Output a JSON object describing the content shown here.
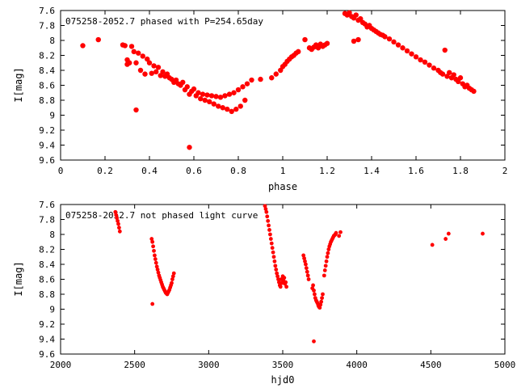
{
  "chart_data": [
    {
      "type": "scatter",
      "title": "075258-2052.7 phased with P=254.65day",
      "xlabel": "phase",
      "ylabel": "I[mag]",
      "xlim": [
        0,
        2
      ],
      "ylim": [
        9.6,
        7.6
      ],
      "y_inverted": true,
      "grid": false,
      "x_ticks": [
        0,
        0.2,
        0.4,
        0.6,
        0.8,
        1,
        1.2,
        1.4,
        1.6,
        1.8,
        2
      ],
      "y_ticks": [
        7.6,
        7.8,
        8,
        8.2,
        8.4,
        8.6,
        8.8,
        9,
        9.2,
        9.4,
        9.6
      ],
      "marker_color": "#ff0000",
      "series": [
        {
          "x": [
            0.1,
            0.17,
            0.28,
            0.29,
            0.3,
            0.3,
            0.31,
            0.32,
            0.33,
            0.34,
            0.35,
            0.36,
            0.37,
            0.38,
            0.39,
            0.4,
            0.41,
            0.42,
            0.43,
            0.44,
            0.45,
            0.46,
            0.47,
            0.48,
            0.49,
            0.5,
            0.51,
            0.52,
            0.53,
            0.54,
            0.55,
            0.56,
            0.57,
            0.58,
            0.59,
            0.6,
            0.61,
            0.62,
            0.63,
            0.64,
            0.65,
            0.66,
            0.67,
            0.68,
            0.69,
            0.7,
            0.71,
            0.72,
            0.73,
            0.74,
            0.75,
            0.76,
            0.77,
            0.78,
            0.79,
            0.8,
            0.81,
            0.82,
            0.83,
            0.84,
            0.86,
            0.9,
            0.34,
            0.58,
            0.95,
            0.97,
            0.99,
            1.0,
            1.01,
            1.02,
            1.03,
            1.04,
            1.05,
            1.06,
            1.07,
            1.1,
            1.12,
            1.13,
            1.14,
            1.15,
            1.16,
            1.17,
            1.18,
            1.19,
            1.2,
            1.28,
            1.29,
            1.3,
            1.31,
            1.32,
            1.33,
            1.34,
            1.35,
            1.36,
            1.37,
            1.38,
            1.39,
            1.4,
            1.41,
            1.42,
            1.43,
            1.44,
            1.45,
            1.46,
            1.48,
            1.5,
            1.52,
            1.54,
            1.56,
            1.58,
            1.6,
            1.62,
            1.64,
            1.66,
            1.68,
            1.7,
            1.71,
            1.72,
            1.73,
            1.74,
            1.75,
            1.76,
            1.77,
            1.78,
            1.79,
            1.8,
            1.81,
            1.82,
            1.83,
            1.84,
            1.85,
            1.86,
            1.32,
            1.34
          ],
          "y": [
            8.07,
            7.99,
            8.06,
            8.07,
            8.32,
            8.26,
            8.3,
            8.08,
            8.15,
            8.3,
            8.17,
            8.4,
            8.21,
            8.45,
            8.25,
            8.3,
            8.44,
            8.34,
            8.42,
            8.36,
            8.47,
            8.42,
            8.48,
            8.45,
            8.5,
            8.52,
            8.56,
            8.53,
            8.58,
            8.6,
            8.56,
            8.66,
            8.62,
            8.72,
            8.68,
            8.65,
            8.74,
            8.7,
            8.78,
            8.72,
            8.8,
            8.73,
            8.82,
            8.74,
            8.85,
            8.75,
            8.88,
            8.76,
            8.9,
            8.74,
            8.92,
            8.72,
            8.95,
            8.7,
            8.92,
            8.66,
            8.88,
            8.62,
            8.8,
            8.58,
            8.53,
            8.52,
            8.93,
            9.43,
            8.5,
            8.45,
            8.4,
            8.35,
            8.32,
            8.28,
            8.25,
            8.22,
            8.2,
            8.17,
            8.15,
            7.99,
            8.1,
            8.12,
            8.09,
            8.06,
            8.1,
            8.05,
            8.08,
            8.06,
            8.04,
            7.64,
            7.66,
            7.63,
            7.68,
            7.7,
            7.66,
            7.73,
            7.71,
            7.76,
            7.78,
            7.82,
            7.8,
            7.84,
            7.86,
            7.88,
            7.9,
            7.92,
            7.93,
            7.95,
            7.98,
            8.02,
            8.06,
            8.1,
            8.14,
            8.18,
            8.22,
            8.26,
            8.29,
            8.33,
            8.37,
            8.4,
            8.43,
            8.45,
            8.13,
            8.48,
            8.43,
            8.5,
            8.46,
            8.52,
            8.55,
            8.5,
            8.58,
            8.62,
            8.6,
            8.64,
            8.66,
            8.68,
            8.01,
            7.99
          ]
        }
      ]
    },
    {
      "type": "scatter",
      "title": "075258-2052.7 not phased light curve",
      "xlabel": "hjd0",
      "ylabel": "I[mag]",
      "xlim": [
        2000,
        5000
      ],
      "ylim": [
        9.6,
        7.6
      ],
      "y_inverted": true,
      "grid": false,
      "x_ticks": [
        2000,
        2500,
        3000,
        3500,
        4000,
        4500,
        5000
      ],
      "y_ticks": [
        7.6,
        7.8,
        8,
        8.2,
        8.4,
        8.6,
        8.8,
        9,
        9.2,
        9.4,
        9.6
      ],
      "marker_color": "#ff0000",
      "series": [
        {
          "x": [
            2370,
            2375,
            2380,
            2385,
            2390,
            2395,
            2400,
            2615,
            2620,
            2625,
            2630,
            2635,
            2640,
            2645,
            2650,
            2655,
            2660,
            2665,
            2670,
            2675,
            2680,
            2685,
            2690,
            2695,
            2700,
            2705,
            2710,
            2715,
            2720,
            2725,
            2730,
            2735,
            2740,
            2745,
            2750,
            2755,
            2760,
            2765,
            2620,
            3380,
            3385,
            3390,
            3395,
            3400,
            3405,
            3410,
            3415,
            3420,
            3425,
            3430,
            3435,
            3440,
            3445,
            3450,
            3455,
            3460,
            3465,
            3470,
            3475,
            3480,
            3485,
            3490,
            3495,
            3500,
            3505,
            3510,
            3515,
            3520,
            3525,
            3640,
            3645,
            3650,
            3655,
            3660,
            3665,
            3670,
            3675,
            3700,
            3705,
            3710,
            3715,
            3720,
            3725,
            3730,
            3735,
            3740,
            3745,
            3750,
            3755,
            3760,
            3765,
            3770,
            3710,
            3780,
            3785,
            3790,
            3795,
            3800,
            3805,
            3810,
            3815,
            3820,
            3825,
            3830,
            3835,
            3840,
            3845,
            3850,
            3855,
            3860,
            3880,
            3890,
            4510,
            4600,
            4620,
            4850
          ],
          "y": [
            7.7,
            7.74,
            7.78,
            7.82,
            7.86,
            7.91,
            7.96,
            8.06,
            8.1,
            8.16,
            8.22,
            8.28,
            8.33,
            8.38,
            8.43,
            8.47,
            8.51,
            8.55,
            8.58,
            8.61,
            8.64,
            8.67,
            8.7,
            8.72,
            8.74,
            8.76,
            8.78,
            8.79,
            8.8,
            8.78,
            8.76,
            8.74,
            8.71,
            8.68,
            8.65,
            8.6,
            8.56,
            8.52,
            8.93,
            7.62,
            7.66,
            7.7,
            7.76,
            7.82,
            7.88,
            7.94,
            8.0,
            8.06,
            8.12,
            8.18,
            8.24,
            8.3,
            8.36,
            8.42,
            8.47,
            8.52,
            8.56,
            8.6,
            8.64,
            8.68,
            8.7,
            8.6,
            8.65,
            8.56,
            8.62,
            8.58,
            8.66,
            8.64,
            8.7,
            8.28,
            8.32,
            8.36,
            8.4,
            8.45,
            8.5,
            8.55,
            8.6,
            8.72,
            8.68,
            8.75,
            8.8,
            8.85,
            8.88,
            8.9,
            8.92,
            8.95,
            8.97,
            8.98,
            8.94,
            8.9,
            8.85,
            8.8,
            9.43,
            8.55,
            8.48,
            8.42,
            8.36,
            8.3,
            8.25,
            8.2,
            8.16,
            8.13,
            8.1,
            8.08,
            8.06,
            8.04,
            8.02,
            8.01,
            8.0,
            7.98,
            8.02,
            7.97,
            8.14,
            8.06,
            7.99,
            7.99
          ]
        }
      ]
    }
  ]
}
